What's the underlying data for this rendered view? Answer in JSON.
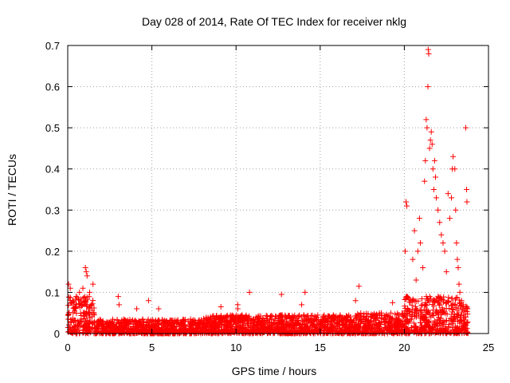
{
  "chart_data": {
    "type": "scatter",
    "title": "Day 028 of 2014, Rate Of TEC Index for receiver nklg",
    "xlabel": "GPS time / hours",
    "ylabel": "ROTI / TECUs",
    "xlim": [
      0,
      25
    ],
    "ylim": [
      0,
      0.7
    ],
    "grid": true,
    "marker": "+",
    "color": "#ff0000",
    "x_ticks": [
      0,
      5,
      10,
      15,
      20,
      25
    ],
    "x_tick_labels": [
      "0",
      "5",
      "10",
      "15",
      "20",
      "25"
    ],
    "y_ticks": [
      0,
      0.1,
      0.2,
      0.3,
      0.4,
      0.5,
      0.6,
      0.7
    ],
    "y_tick_labels": [
      "0",
      "0.1",
      "0.2",
      "0.3",
      "0.4",
      "0.5",
      "0.6",
      "0.7"
    ],
    "notable_points": [
      {
        "x": 0.05,
        "y": 0.12
      },
      {
        "x": 0.15,
        "y": 0.11
      },
      {
        "x": 0.3,
        "y": 0.08
      },
      {
        "x": 0.5,
        "y": 0.09
      },
      {
        "x": 0.7,
        "y": 0.1
      },
      {
        "x": 0.9,
        "y": 0.11
      },
      {
        "x": 1.05,
        "y": 0.16
      },
      {
        "x": 1.1,
        "y": 0.15
      },
      {
        "x": 1.15,
        "y": 0.14
      },
      {
        "x": 1.3,
        "y": 0.1
      },
      {
        "x": 1.5,
        "y": 0.12
      },
      {
        "x": 1.4,
        "y": 0.07
      },
      {
        "x": 3.0,
        "y": 0.09
      },
      {
        "x": 3.05,
        "y": 0.07
      },
      {
        "x": 4.1,
        "y": 0.06
      },
      {
        "x": 4.8,
        "y": 0.08
      },
      {
        "x": 5.4,
        "y": 0.06
      },
      {
        "x": 9.1,
        "y": 0.065
      },
      {
        "x": 10.1,
        "y": 0.06
      },
      {
        "x": 10.1,
        "y": 0.07
      },
      {
        "x": 10.8,
        "y": 0.1
      },
      {
        "x": 12.7,
        "y": 0.095
      },
      {
        "x": 13.9,
        "y": 0.07
      },
      {
        "x": 14.1,
        "y": 0.1
      },
      {
        "x": 17.1,
        "y": 0.08
      },
      {
        "x": 17.3,
        "y": 0.115
      },
      {
        "x": 19.3,
        "y": 0.075
      },
      {
        "x": 20.05,
        "y": 0.2
      },
      {
        "x": 20.1,
        "y": 0.32
      },
      {
        "x": 20.15,
        "y": 0.31
      },
      {
        "x": 20.5,
        "y": 0.18
      },
      {
        "x": 20.6,
        "y": 0.25
      },
      {
        "x": 20.7,
        "y": 0.13
      },
      {
        "x": 20.8,
        "y": 0.2
      },
      {
        "x": 20.9,
        "y": 0.28
      },
      {
        "x": 20.95,
        "y": 0.22
      },
      {
        "x": 21.1,
        "y": 0.16
      },
      {
        "x": 21.2,
        "y": 0.37
      },
      {
        "x": 21.25,
        "y": 0.42
      },
      {
        "x": 21.3,
        "y": 0.52
      },
      {
        "x": 21.35,
        "y": 0.5
      },
      {
        "x": 21.4,
        "y": 0.6
      },
      {
        "x": 21.42,
        "y": 0.69
      },
      {
        "x": 21.45,
        "y": 0.68
      },
      {
        "x": 21.5,
        "y": 0.45
      },
      {
        "x": 21.55,
        "y": 0.47
      },
      {
        "x": 21.6,
        "y": 0.49
      },
      {
        "x": 21.65,
        "y": 0.46
      },
      {
        "x": 21.7,
        "y": 0.4
      },
      {
        "x": 21.75,
        "y": 0.35
      },
      {
        "x": 21.8,
        "y": 0.42
      },
      {
        "x": 21.85,
        "y": 0.38
      },
      {
        "x": 21.9,
        "y": 0.33
      },
      {
        "x": 22.0,
        "y": 0.3
      },
      {
        "x": 22.1,
        "y": 0.27
      },
      {
        "x": 22.2,
        "y": 0.24
      },
      {
        "x": 22.3,
        "y": 0.22
      },
      {
        "x": 22.4,
        "y": 0.2
      },
      {
        "x": 22.5,
        "y": 0.15
      },
      {
        "x": 22.6,
        "y": 0.34
      },
      {
        "x": 22.7,
        "y": 0.28
      },
      {
        "x": 22.8,
        "y": 0.33
      },
      {
        "x": 22.85,
        "y": 0.4
      },
      {
        "x": 22.9,
        "y": 0.43
      },
      {
        "x": 23.0,
        "y": 0.4
      },
      {
        "x": 23.05,
        "y": 0.3
      },
      {
        "x": 23.1,
        "y": 0.22
      },
      {
        "x": 23.15,
        "y": 0.18
      },
      {
        "x": 23.2,
        "y": 0.16
      },
      {
        "x": 23.25,
        "y": 0.12
      },
      {
        "x": 23.3,
        "y": 0.1
      },
      {
        "x": 23.4,
        "y": 0.08
      },
      {
        "x": 23.5,
        "y": 0.07
      },
      {
        "x": 23.65,
        "y": 0.5
      },
      {
        "x": 23.7,
        "y": 0.35
      },
      {
        "x": 23.72,
        "y": 0.32
      },
      {
        "x": 23.75,
        "y": 0.06
      }
    ],
    "baseline_bands": [
      {
        "x_start": 0.0,
        "x_end": 1.6,
        "y_min": 0.0,
        "y_max": 0.09
      },
      {
        "x_start": 1.6,
        "y_min": 0.0,
        "x_end": 8.0,
        "y_max": 0.035
      },
      {
        "x_start": 8.0,
        "x_end": 17.0,
        "y_min": 0.0,
        "y_max": 0.045
      },
      {
        "x_start": 17.0,
        "x_end": 20.0,
        "y_min": 0.0,
        "y_max": 0.05
      },
      {
        "x_start": 20.0,
        "x_end": 23.8,
        "y_min": 0.0,
        "y_max": 0.09
      }
    ]
  }
}
